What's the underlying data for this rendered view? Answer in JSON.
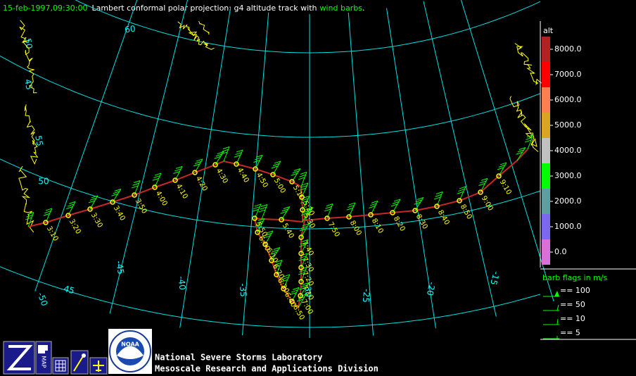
{
  "header": {
    "date": "15-feb-1997,09:30:00",
    "text": "Lambert conformal polar projection:  g4 altitude track with",
    "highlight": "wind barbs",
    "end": "."
  },
  "lat_labels": [
    "60",
    "55",
    "50",
    "45",
    "50",
    "45"
  ],
  "lon_labels": [
    "-50",
    "-45",
    "-40",
    "-35",
    "-30",
    "-25",
    "-20",
    "-15"
  ],
  "track_labels": [
    "3:10",
    "3:20",
    "3:30",
    "3:40",
    "3:50",
    "4:00",
    "4:10",
    "4:20",
    "4:30",
    "4:40",
    "4:50",
    "5:00",
    "5:10",
    "5:20",
    "5:30",
    "5:40",
    "5:50",
    "6:00",
    "6:10",
    "6:20",
    "6:30",
    "6:40",
    "6:50",
    "7:00",
    "7:10",
    "7:20",
    "7:30",
    "7:40",
    "7:50",
    "8:00",
    "8:10",
    "8:20",
    "8:30",
    "8:40",
    "8:50",
    "9:00",
    "9:10"
  ],
  "colorbar": {
    "title": "alt",
    "labels": [
      "8000.0",
      "7000.0",
      "6000.0",
      "5000.0",
      "4000.0",
      "3000.0",
      "2000.0",
      "1000.0",
      "0.0"
    ],
    "colors": [
      "#b22222",
      "#ff0000",
      "#ff7f50",
      "#daa520",
      "#c0c0c0",
      "#00ff00",
      "#5f9ea0",
      "#7b68ee",
      "#da70d6"
    ]
  },
  "barb_legend": {
    "title": "barb flags in m/s",
    "items": [
      "== 100",
      "== 50",
      "== 10",
      "== 5"
    ]
  },
  "footer": {
    "line1": "National Severe Storms Laboratory",
    "line2": "Mesoscale Research and Applications Division",
    "map_icon": "MAP",
    "logo": "NOAA"
  }
}
